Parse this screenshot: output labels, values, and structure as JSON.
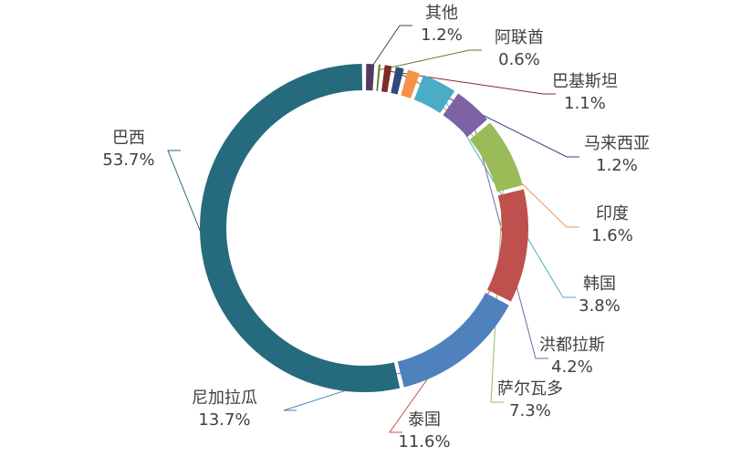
{
  "chart_data": {
    "type": "pie",
    "variant": "donut",
    "title": "",
    "legend": "none",
    "label_placement": "outside-with-leader-lines",
    "categories": [
      "其他",
      "阿联酋",
      "巴基斯坦",
      "马来西亚",
      "印度",
      "韩国",
      "洪都拉斯",
      "萨尔瓦多",
      "泰国",
      "尼加拉瓜",
      "巴西"
    ],
    "values": [
      1.2,
      0.6,
      1.1,
      1.2,
      1.6,
      3.8,
      4.2,
      7.3,
      11.6,
      13.7,
      53.7
    ],
    "value_labels": [
      "1.2%",
      "0.6%",
      "1.1%",
      "1.2%",
      "1.6%",
      "3.8%",
      "4.2%",
      "7.3%",
      "11.6%",
      "13.7%",
      "53.7%"
    ],
    "colors": [
      "#4e3d63",
      "#5f7a2e",
      "#7d2c2c",
      "#2e4a78",
      "#f5924a",
      "#4aacc6",
      "#7d63a4",
      "#9bbb59",
      "#c0504d",
      "#4f81bd",
      "#266b7d"
    ]
  }
}
